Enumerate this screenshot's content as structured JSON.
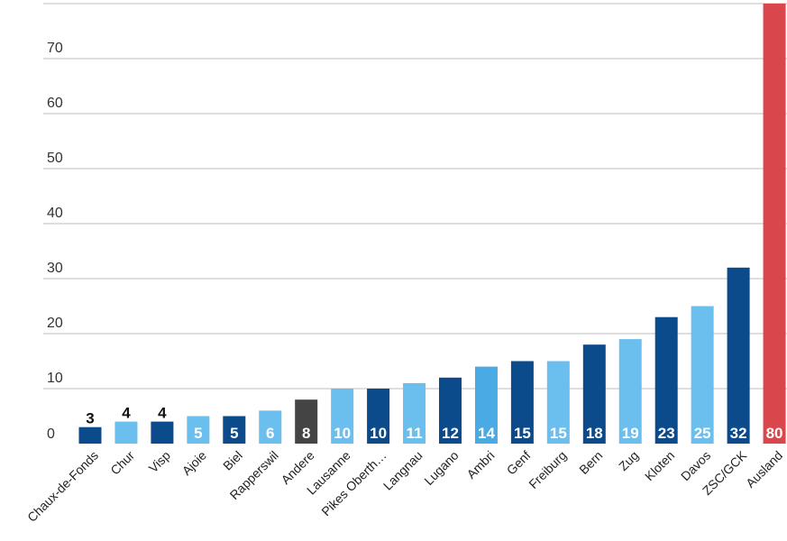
{
  "chart_data": {
    "type": "bar",
    "title": "",
    "xlabel": "",
    "ylabel": "",
    "ylim": [
      0,
      80
    ],
    "yticks": [
      0,
      10,
      20,
      30,
      40,
      50,
      60,
      70
    ],
    "grid": true,
    "categories": [
      "Chaux-de-Fonds",
      "Chur",
      "Visp",
      "Ajoie",
      "Biel",
      "Rapperswil",
      "Andere",
      "Lausanne",
      "Pikes Oberth…",
      "Langnau",
      "Lugano",
      "Ambri",
      "Genf",
      "Freiburg",
      "Bern",
      "Zug",
      "Kloten",
      "Davos",
      "ZSC/GCK",
      "Ausland"
    ],
    "values": [
      3,
      4,
      4,
      5,
      5,
      6,
      8,
      10,
      10,
      11,
      12,
      14,
      15,
      15,
      18,
      19,
      23,
      25,
      32,
      80
    ],
    "bar_colors": [
      "#0b4a8b",
      "#6bbfef",
      "#0b4a8b",
      "#6bbfef",
      "#0b4a8b",
      "#6bbfef",
      "#444444",
      "#6bbfef",
      "#0b4a8b",
      "#6bbfef",
      "#0b4a8b",
      "#4aaae4",
      "#0b4a8b",
      "#6bbfef",
      "#0b4a8b",
      "#6bbfef",
      "#0b4a8b",
      "#6bbfef",
      "#0b4a8b",
      "#d9474c"
    ]
  }
}
